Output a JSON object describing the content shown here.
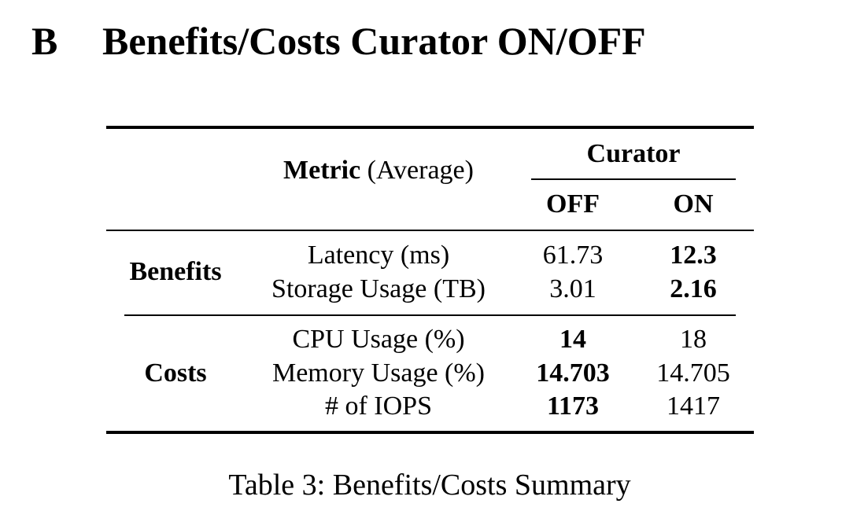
{
  "section": {
    "number": "B",
    "title": "Benefits/Costs Curator ON/OFF"
  },
  "table": {
    "header": {
      "metric_label": "Metric",
      "metric_qualifier": "(Average)",
      "group_label": "Curator",
      "col_off": "OFF",
      "col_on": "ON"
    },
    "groups": [
      {
        "label": "Benefits",
        "rows": [
          {
            "metric": "Latency (ms)",
            "off": "61.73",
            "on": "12.3"
          },
          {
            "metric": "Storage Usage (TB)",
            "off": "3.01",
            "on": "2.16"
          }
        ]
      },
      {
        "label": "Costs",
        "rows": [
          {
            "metric": "CPU Usage (%)",
            "off": "14",
            "on": "18"
          },
          {
            "metric": "Memory Usage (%)",
            "off": "14.703",
            "on": "14.705"
          },
          {
            "metric": "# of IOPS",
            "off": "1173",
            "on": "1417"
          }
        ]
      }
    ]
  },
  "caption": "Table 3: Benefits/Costs Summary"
}
